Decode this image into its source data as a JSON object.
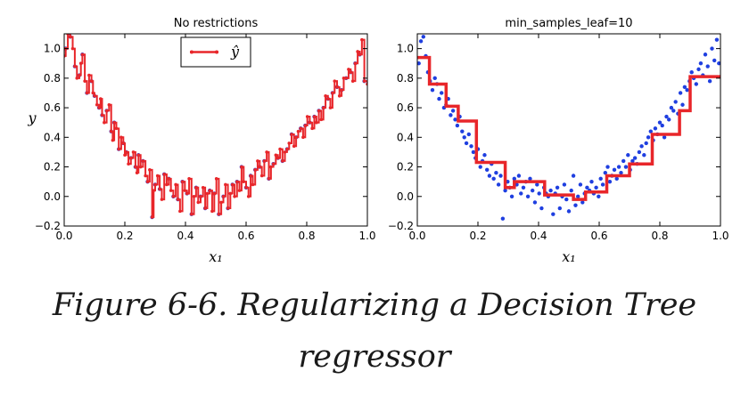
{
  "caption": {
    "line1": "Figure 6-6. Regularizing a Decision Tree",
    "line2": "regressor"
  },
  "chart_data": [
    {
      "type": "scatter",
      "title": "No restrictions",
      "xlabel": "x₁",
      "ylabel": "y",
      "xlim": [
        0.0,
        1.0
      ],
      "ylim": [
        -0.2,
        1.1
      ],
      "xticks": [
        "0.0",
        "0.2",
        "0.4",
        "0.6",
        "0.8",
        "1.0"
      ],
      "yticks": [
        "−0.2",
        "0.0",
        "0.2",
        "0.4",
        "0.6",
        "0.8",
        "1.0"
      ],
      "legend": {
        "label": "ŷ",
        "placement": "top-center"
      },
      "grid": false,
      "colors": {
        "points": "#1f3fe0",
        "prediction": "#e8262a"
      },
      "series": [
        {
          "kind": "points",
          "x": [
            0.005,
            0.02,
            0.035,
            0.05,
            0.06,
            0.075,
            0.09,
            0.1,
            0.115,
            0.125,
            0.14,
            0.155,
            0.165,
            0.18,
            0.195,
            0.205,
            0.22,
            0.235,
            0.245,
            0.26,
            0.275,
            0.29,
            0.3,
            0.315,
            0.33,
            0.345,
            0.36,
            0.375,
            0.39,
            0.405,
            0.42,
            0.435,
            0.45,
            0.465,
            0.48,
            0.495,
            0.51,
            0.525,
            0.54,
            0.555,
            0.57,
            0.585,
            0.6,
            0.615,
            0.63,
            0.645,
            0.66,
            0.675,
            0.69,
            0.705,
            0.72,
            0.735,
            0.75,
            0.765,
            0.78,
            0.795,
            0.81,
            0.825,
            0.84,
            0.855,
            0.87,
            0.885,
            0.9,
            0.915,
            0.93,
            0.945,
            0.96,
            0.975,
            0.99
          ],
          "y": [
            1.0,
            1.08,
            0.88,
            0.82,
            0.96,
            0.7,
            0.78,
            0.68,
            0.6,
            0.55,
            0.58,
            0.44,
            0.5,
            0.32,
            0.36,
            0.3,
            0.26,
            0.2,
            0.28,
            0.24,
            0.1,
            -0.14,
            0.08,
            0.05,
            0.15,
            0.12,
            0.0,
            -0.02,
            0.1,
            0.02,
            -0.12,
            0.06,
            0.0,
            -0.08,
            0.04,
            0.02,
            -0.12,
            0.0,
            -0.08,
            0.08,
            0.1,
            0.2,
            0.06,
            0.14,
            0.18,
            0.2,
            0.24,
            0.12,
            0.22,
            0.26,
            0.24,
            0.32,
            0.42,
            0.4,
            0.46,
            0.48,
            0.5,
            0.54,
            0.58,
            0.6,
            0.66,
            0.7,
            0.74,
            0.72,
            0.8,
            0.84,
            0.9,
            0.96,
            0.78
          ]
        },
        {
          "kind": "step",
          "x": [
            0.0,
            0.005,
            0.012,
            0.02,
            0.028,
            0.035,
            0.042,
            0.05,
            0.055,
            0.06,
            0.068,
            0.075,
            0.082,
            0.09,
            0.095,
            0.1,
            0.108,
            0.115,
            0.12,
            0.125,
            0.132,
            0.14,
            0.148,
            0.155,
            0.16,
            0.165,
            0.172,
            0.18,
            0.188,
            0.195,
            0.2,
            0.205,
            0.212,
            0.22,
            0.228,
            0.235,
            0.24,
            0.245,
            0.252,
            0.26,
            0.268,
            0.275,
            0.282,
            0.29,
            0.295,
            0.3,
            0.308,
            0.315,
            0.322,
            0.33,
            0.338,
            0.345,
            0.352,
            0.36,
            0.368,
            0.375,
            0.382,
            0.39,
            0.398,
            0.405,
            0.412,
            0.42,
            0.428,
            0.435,
            0.442,
            0.45,
            0.458,
            0.465,
            0.472,
            0.48,
            0.488,
            0.495,
            0.502,
            0.51,
            0.518,
            0.525,
            0.532,
            0.54,
            0.548,
            0.555,
            0.562,
            0.57,
            0.578,
            0.585,
            0.592,
            0.6,
            0.608,
            0.615,
            0.622,
            0.63,
            0.638,
            0.645,
            0.652,
            0.66,
            0.668,
            0.675,
            0.682,
            0.69,
            0.698,
            0.705,
            0.712,
            0.72,
            0.728,
            0.735,
            0.742,
            0.75,
            0.758,
            0.765,
            0.772,
            0.78,
            0.788,
            0.795,
            0.802,
            0.81,
            0.818,
            0.825,
            0.832,
            0.84,
            0.848,
            0.855,
            0.862,
            0.87,
            0.878,
            0.885,
            0.892,
            0.9,
            0.908,
            0.915,
            0.922,
            0.93,
            0.938,
            0.945,
            0.952,
            0.96,
            0.968,
            0.975,
            0.982,
            0.99,
            1.0
          ],
          "y": [
            0.95,
            1.0,
            1.1,
            1.08,
            1.0,
            0.88,
            0.8,
            0.82,
            0.9,
            0.96,
            0.78,
            0.7,
            0.82,
            0.78,
            0.7,
            0.68,
            0.62,
            0.6,
            0.66,
            0.55,
            0.5,
            0.58,
            0.62,
            0.44,
            0.38,
            0.5,
            0.46,
            0.32,
            0.4,
            0.36,
            0.28,
            0.3,
            0.22,
            0.26,
            0.3,
            0.2,
            0.16,
            0.28,
            0.2,
            0.24,
            0.14,
            0.1,
            0.18,
            -0.14,
            0.04,
            0.08,
            0.14,
            0.05,
            -0.02,
            0.15,
            0.08,
            0.12,
            0.04,
            0.0,
            0.08,
            -0.02,
            -0.1,
            0.1,
            0.04,
            0.02,
            0.12,
            -0.12,
            0.0,
            0.06,
            -0.04,
            0.0,
            0.06,
            -0.08,
            0.02,
            0.04,
            -0.1,
            0.02,
            0.12,
            -0.12,
            -0.04,
            0.0,
            0.08,
            -0.08,
            0.02,
            0.08,
            0.0,
            0.1,
            0.04,
            0.2,
            0.1,
            0.06,
            0.0,
            0.14,
            0.08,
            0.18,
            0.24,
            0.2,
            0.14,
            0.24,
            0.3,
            0.12,
            0.2,
            0.22,
            0.28,
            0.26,
            0.32,
            0.24,
            0.3,
            0.32,
            0.36,
            0.42,
            0.34,
            0.4,
            0.44,
            0.46,
            0.4,
            0.48,
            0.54,
            0.5,
            0.46,
            0.54,
            0.5,
            0.58,
            0.52,
            0.6,
            0.68,
            0.66,
            0.6,
            0.7,
            0.78,
            0.74,
            0.68,
            0.72,
            0.8,
            0.8,
            0.86,
            0.84,
            0.78,
            0.9,
            0.98,
            0.96,
            1.06,
            0.78,
            0.76
          ]
        }
      ]
    },
    {
      "type": "scatter",
      "title": "min_samples_leaf=10",
      "xlabel": "x₁",
      "ylabel": "",
      "xlim": [
        0.0,
        1.0
      ],
      "ylim": [
        -0.2,
        1.1
      ],
      "xticks": [
        "0.0",
        "0.2",
        "0.4",
        "0.6",
        "0.8",
        "1.0"
      ],
      "yticks": [
        "−0.2",
        "0.0",
        "0.2",
        "0.4",
        "0.6",
        "0.8",
        "1.0"
      ],
      "grid": false,
      "colors": {
        "points": "#1f3fe0",
        "prediction": "#e8262a"
      },
      "series": [
        {
          "kind": "points",
          "x": [
            0.005,
            0.012,
            0.02,
            0.028,
            0.035,
            0.042,
            0.05,
            0.058,
            0.065,
            0.072,
            0.08,
            0.088,
            0.095,
            0.102,
            0.11,
            0.118,
            0.125,
            0.132,
            0.14,
            0.148,
            0.155,
            0.162,
            0.17,
            0.178,
            0.185,
            0.192,
            0.2,
            0.208,
            0.215,
            0.222,
            0.23,
            0.238,
            0.245,
            0.252,
            0.26,
            0.268,
            0.275,
            0.282,
            0.29,
            0.298,
            0.305,
            0.312,
            0.32,
            0.328,
            0.335,
            0.342,
            0.35,
            0.358,
            0.365,
            0.372,
            0.38,
            0.388,
            0.395,
            0.402,
            0.41,
            0.418,
            0.425,
            0.432,
            0.44,
            0.448,
            0.455,
            0.462,
            0.47,
            0.478,
            0.485,
            0.492,
            0.5,
            0.508,
            0.515,
            0.522,
            0.53,
            0.538,
            0.545,
            0.552,
            0.56,
            0.568,
            0.575,
            0.582,
            0.59,
            0.598,
            0.605,
            0.612,
            0.62,
            0.628,
            0.635,
            0.642,
            0.65,
            0.658,
            0.665,
            0.672,
            0.68,
            0.688,
            0.695,
            0.702,
            0.71,
            0.718,
            0.725,
            0.732,
            0.74,
            0.748,
            0.755,
            0.762,
            0.77,
            0.778,
            0.785,
            0.792,
            0.8,
            0.808,
            0.815,
            0.822,
            0.83,
            0.838,
            0.845,
            0.852,
            0.86,
            0.868,
            0.875,
            0.882,
            0.89,
            0.898,
            0.905,
            0.912,
            0.92,
            0.928,
            0.935,
            0.942,
            0.95,
            0.958,
            0.965,
            0.972,
            0.98,
            0.988,
            0.995
          ],
          "y": [
            0.9,
            1.05,
            1.08,
            0.95,
            0.84,
            0.78,
            0.72,
            0.8,
            0.76,
            0.66,
            0.7,
            0.6,
            0.62,
            0.66,
            0.55,
            0.58,
            0.52,
            0.48,
            0.54,
            0.44,
            0.4,
            0.36,
            0.42,
            0.34,
            0.3,
            0.26,
            0.32,
            0.2,
            0.24,
            0.28,
            0.18,
            0.14,
            0.22,
            0.12,
            0.16,
            0.08,
            0.14,
            -0.15,
            0.04,
            0.1,
            0.06,
            0.0,
            0.12,
            0.08,
            0.14,
            0.02,
            0.06,
            0.1,
            0.0,
            0.12,
            0.04,
            -0.04,
            0.08,
            0.02,
            -0.08,
            0.06,
            0.02,
            0.0,
            0.04,
            -0.12,
            0.02,
            0.06,
            -0.08,
            0.0,
            0.08,
            -0.02,
            -0.1,
            0.04,
            0.14,
            -0.06,
            0.0,
            0.08,
            -0.04,
            0.02,
            0.06,
            0.04,
            0.1,
            0.02,
            0.06,
            0.0,
            0.12,
            0.08,
            0.16,
            0.2,
            0.1,
            0.14,
            0.18,
            0.12,
            0.2,
            0.16,
            0.24,
            0.2,
            0.28,
            0.18,
            0.24,
            0.26,
            0.22,
            0.3,
            0.34,
            0.28,
            0.36,
            0.4,
            0.44,
            0.38,
            0.46,
            0.42,
            0.5,
            0.48,
            0.4,
            0.54,
            0.52,
            0.6,
            0.58,
            0.64,
            0.56,
            0.7,
            0.62,
            0.74,
            0.72,
            0.78,
            0.84,
            0.8,
            0.76,
            0.86,
            0.9,
            0.82,
            0.96,
            0.88,
            0.78,
            1.0,
            0.92,
            1.06,
            0.9
          ]
        },
        {
          "kind": "step",
          "x": [
            0.0,
            0.04,
            0.095,
            0.135,
            0.195,
            0.29,
            0.32,
            0.42,
            0.515,
            0.555,
            0.625,
            0.7,
            0.775,
            0.865,
            0.9,
            1.0
          ],
          "y": [
            0.94,
            0.76,
            0.61,
            0.51,
            0.23,
            0.06,
            0.1,
            0.01,
            -0.02,
            0.03,
            0.14,
            0.22,
            0.42,
            0.58,
            0.81,
            0.81
          ]
        }
      ]
    }
  ]
}
